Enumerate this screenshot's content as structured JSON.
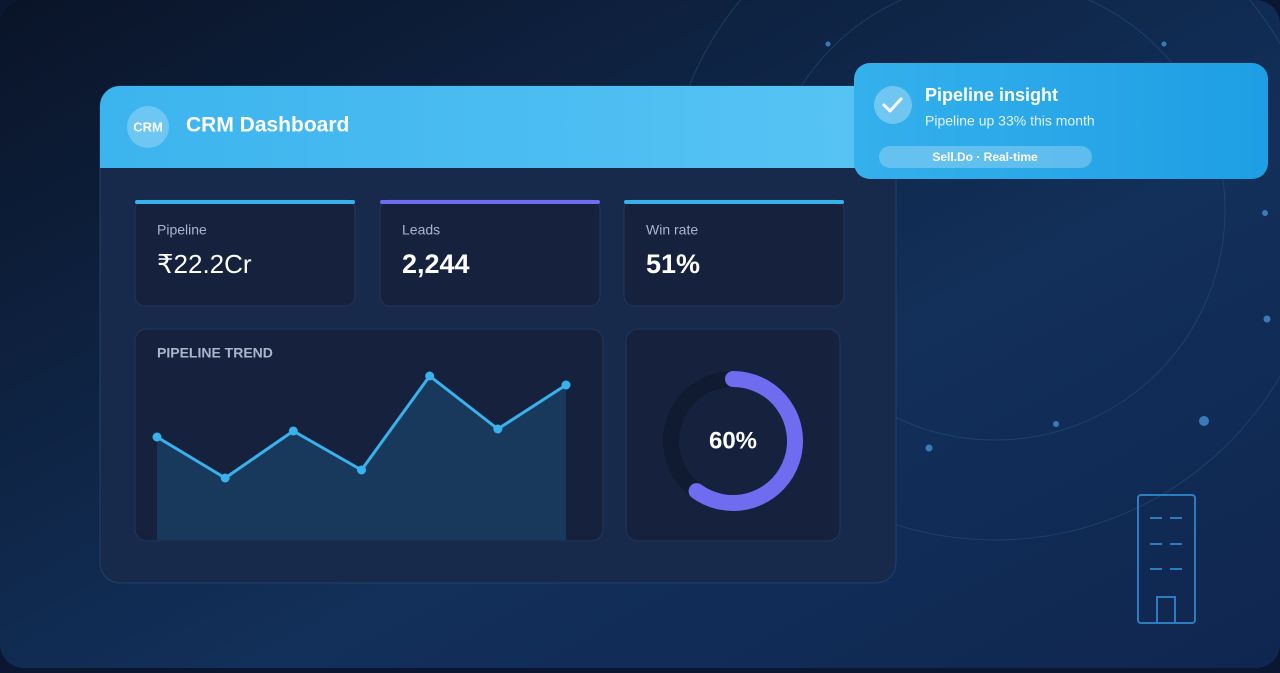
{
  "header": {
    "logo": "CRM",
    "title": "CRM Dashboard"
  },
  "kpis": [
    {
      "label": "Pipeline",
      "value": "₹22.2Cr"
    },
    {
      "label": "Leads",
      "value": "2,244"
    },
    {
      "label": "Win rate",
      "value": "51%"
    }
  ],
  "chart_data": [
    {
      "type": "line",
      "title": "PIPELINE TREND",
      "values": [
        103,
        62,
        109,
        70,
        164,
        111,
        155
      ],
      "color": "#38b2ec"
    },
    {
      "type": "donut",
      "values": [
        60
      ],
      "value_labels": [
        "60%"
      ],
      "color": "#6f6cf0"
    }
  ],
  "notification": {
    "title": "Pipeline insight",
    "message": "Pipeline up 33% this month",
    "tag": "Sell.Do · Real-time"
  }
}
